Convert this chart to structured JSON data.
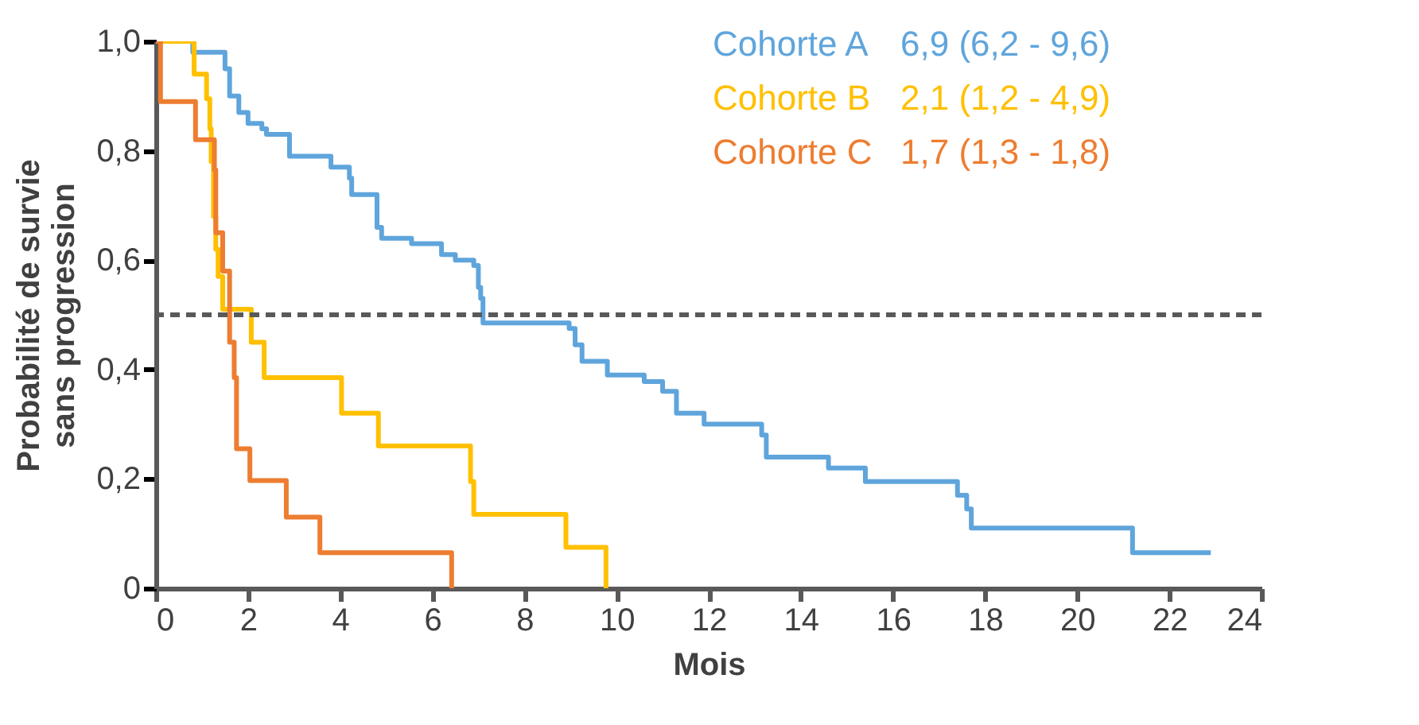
{
  "chart_data": {
    "type": "step",
    "xlabel": "Mois",
    "ylabel": "Probabilité de survie\nsans progression",
    "xlim": [
      0,
      24
    ],
    "xticks": [
      0,
      2,
      4,
      6,
      8,
      10,
      12,
      14,
      16,
      18,
      20,
      22,
      24
    ],
    "ylim": [
      0,
      1
    ],
    "yticks": [
      {
        "value": 0,
        "label": "0"
      },
      {
        "value": 0.2,
        "label": "0,2"
      },
      {
        "value": 0.4,
        "label": "0,4"
      },
      {
        "value": 0.6,
        "label": "0,6"
      },
      {
        "value": 0.8,
        "label": "0,8"
      },
      {
        "value": 1,
        "label": "1,0"
      }
    ],
    "grid": false,
    "legend": "top right",
    "line_style": "solid",
    "marker": "none",
    "series": [
      {
        "name": "Cohorte A",
        "color": "#5fa5dc",
        "x": [
          0,
          0.8,
          1.5,
          1.6,
          1.8,
          2.0,
          2.3,
          2.4,
          2.9,
          3.8,
          4.2,
          4.25,
          4.8,
          4.9,
          5.55,
          6.2,
          6.5,
          6.9,
          7.0,
          7.05,
          7.1,
          8.97,
          9.1,
          9.25,
          9.8,
          10.6,
          11.0,
          11.3,
          11.9,
          13.15,
          13.25,
          14.6,
          15.4,
          17.4,
          17.6,
          17.7,
          21.2,
          22.9
        ],
        "values": [
          1.0,
          0.98,
          0.95,
          0.9,
          0.87,
          0.85,
          0.84,
          0.83,
          0.79,
          0.77,
          0.75,
          0.72,
          0.66,
          0.64,
          0.63,
          0.61,
          0.6,
          0.59,
          0.55,
          0.53,
          0.485,
          0.475,
          0.445,
          0.415,
          0.39,
          0.378,
          0.36,
          0.32,
          0.3,
          0.28,
          0.24,
          0.22,
          0.195,
          0.17,
          0.145,
          0.11,
          0.065,
          0.065
        ]
      },
      {
        "name": "Cohorte B",
        "color": "#ffc000",
        "x": [
          0,
          0.83,
          1.1,
          1.17,
          1.2,
          1.25,
          1.3,
          1.35,
          1.45,
          2.07,
          2.35,
          4.03,
          4.83,
          6.83,
          6.9,
          8.9,
          9.77
        ],
        "values": [
          1.0,
          0.94,
          0.895,
          0.84,
          0.78,
          0.68,
          0.62,
          0.57,
          0.51,
          0.45,
          0.385,
          0.32,
          0.26,
          0.195,
          0.135,
          0.075,
          0
        ]
      },
      {
        "name": "Cohorte C",
        "color": "#ed7d31",
        "x": [
          0,
          0.1,
          0.86,
          1.27,
          1.3,
          1.45,
          1.6,
          1.7,
          1.75,
          2.04,
          2.83,
          3.56,
          6.42
        ],
        "values": [
          1.0,
          0.89,
          0.82,
          0.765,
          0.65,
          0.58,
          0.45,
          0.385,
          0.255,
          0.197,
          0.13,
          0.065,
          0
        ]
      }
    ],
    "ref_lines": [
      {
        "axis": "y",
        "value": 0.5,
        "color": "#595959",
        "line_style": "dashed"
      }
    ],
    "annotations": [
      "6,9 (6,2 - 9,6)",
      "2,1 (1,2 - 4,9)",
      "1,7 (1,3 - 1,8)"
    ]
  }
}
